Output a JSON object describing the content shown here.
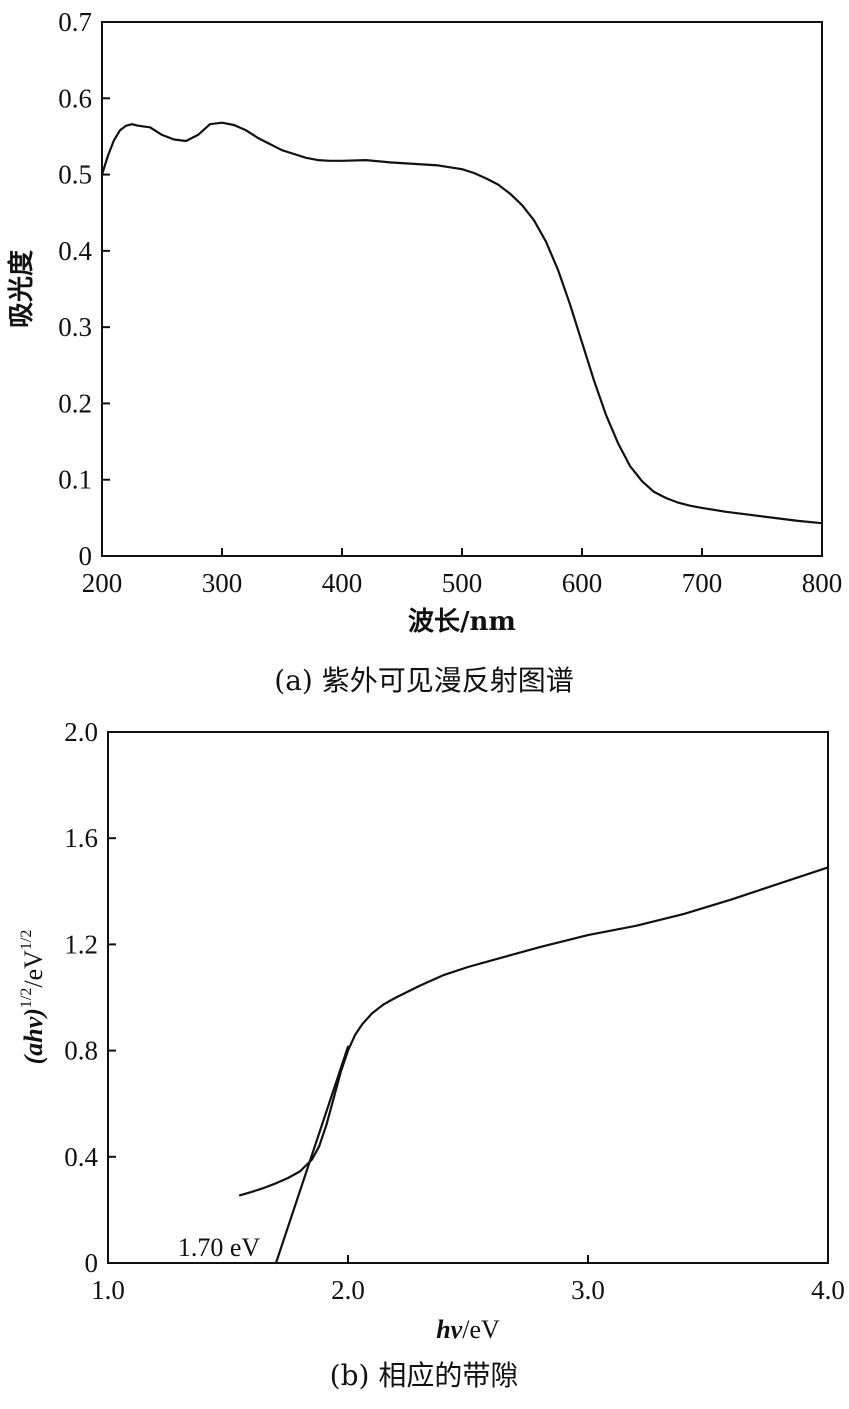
{
  "chart_data": [
    {
      "type": "line",
      "title": "",
      "caption": "(a) 紫外可见漫反射图谱",
      "xlabel": "波长/nm",
      "ylabel": "吸光度",
      "xlim": [
        200,
        800
      ],
      "ylim": [
        0,
        0.7
      ],
      "xticks": [
        "200",
        "300",
        "400",
        "500",
        "600",
        "700",
        "800"
      ],
      "yticks": [
        "0",
        "0.1",
        "0.2",
        "0.3",
        "0.4",
        "0.5",
        "0.6",
        "0.7"
      ],
      "grid": false,
      "series": [
        {
          "x": [
            200,
            205,
            210,
            215,
            220,
            225,
            230,
            240,
            250,
            260,
            270,
            280,
            290,
            300,
            310,
            320,
            330,
            340,
            350,
            360,
            370,
            380,
            390,
            400,
            420,
            440,
            460,
            480,
            500,
            510,
            520,
            530,
            540,
            550,
            560,
            570,
            580,
            590,
            600,
            610,
            620,
            630,
            640,
            650,
            660,
            670,
            680,
            690,
            700,
            720,
            740,
            760,
            780,
            800
          ],
          "y": [
            0.5,
            0.525,
            0.545,
            0.558,
            0.564,
            0.566,
            0.564,
            0.562,
            0.552,
            0.546,
            0.544,
            0.552,
            0.566,
            0.568,
            0.565,
            0.558,
            0.548,
            0.54,
            0.532,
            0.527,
            0.522,
            0.519,
            0.518,
            0.518,
            0.519,
            0.516,
            0.514,
            0.512,
            0.507,
            0.502,
            0.495,
            0.487,
            0.475,
            0.46,
            0.44,
            0.412,
            0.375,
            0.33,
            0.28,
            0.23,
            0.185,
            0.148,
            0.118,
            0.098,
            0.084,
            0.076,
            0.07,
            0.066,
            0.063,
            0.058,
            0.054,
            0.05,
            0.046,
            0.043
          ]
        }
      ]
    },
    {
      "type": "line",
      "title": "",
      "caption": "(b) 相应的带隙",
      "xlabel_main": "hν",
      "xlabel_unit": "/eV",
      "ylabel_main": "(ahν)",
      "ylabel_sup": "1/2",
      "ylabel_unit": "/eV",
      "ylabel_unit_sup": "1/2",
      "xlim": [
        1.0,
        4.0
      ],
      "ylim": [
        0,
        2.0
      ],
      "xticks": [
        "1.0",
        "2.0",
        "3.0",
        "4.0"
      ],
      "yticks": [
        "0",
        "0.4",
        "0.8",
        "1.2",
        "1.6",
        "2.0"
      ],
      "grid": false,
      "annotation": "1.70 eV",
      "series": [
        {
          "x": [
            1.55,
            1.6,
            1.65,
            1.7,
            1.75,
            1.8,
            1.85,
            1.88,
            1.91,
            1.94,
            1.97,
            2.0,
            2.03,
            2.06,
            2.1,
            2.15,
            2.2,
            2.3,
            2.4,
            2.5,
            2.6,
            2.8,
            3.0,
            3.2,
            3.4,
            3.6,
            3.8,
            4.0
          ],
          "y": [
            0.255,
            0.268,
            0.283,
            0.3,
            0.32,
            0.345,
            0.39,
            0.44,
            0.52,
            0.62,
            0.72,
            0.8,
            0.86,
            0.9,
            0.94,
            0.975,
            1.0,
            1.045,
            1.085,
            1.115,
            1.14,
            1.19,
            1.235,
            1.27,
            1.315,
            1.37,
            1.43,
            1.49
          ]
        },
        {
          "x": [
            1.7,
            2.0
          ],
          "y": [
            0,
            0.815
          ]
        }
      ]
    }
  ]
}
